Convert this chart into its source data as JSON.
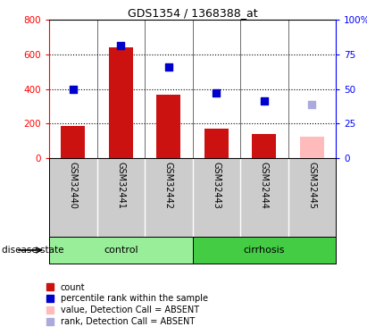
{
  "title": "GDS1354 / 1368388_at",
  "samples": [
    "GSM32440",
    "GSM32441",
    "GSM32442",
    "GSM32443",
    "GSM32444",
    "GSM32445"
  ],
  "bar_values": [
    185,
    640,
    365,
    168,
    138,
    125
  ],
  "bar_colors": [
    "#cc1111",
    "#cc1111",
    "#cc1111",
    "#cc1111",
    "#cc1111",
    "#ffbbbb"
  ],
  "dot_values": [
    50,
    81,
    66,
    47,
    41,
    39
  ],
  "dot_colors": [
    "#0000cc",
    "#0000cc",
    "#0000cc",
    "#0000cc",
    "#0000cc",
    "#aaaadd"
  ],
  "ylim_left": [
    0,
    800
  ],
  "ylim_right": [
    0,
    100
  ],
  "yticks_left": [
    0,
    200,
    400,
    600,
    800
  ],
  "yticks_right": [
    0,
    25,
    50,
    75,
    100
  ],
  "ytick_labels_left": [
    "0",
    "200",
    "400",
    "600",
    "800"
  ],
  "ytick_labels_right": [
    "0",
    "25",
    "50",
    "75",
    "100%"
  ],
  "group_info": [
    {
      "label": "control",
      "start": 0,
      "end": 3,
      "color": "#99ee99"
    },
    {
      "label": "cirrhosis",
      "start": 3,
      "end": 6,
      "color": "#44cc44"
    }
  ],
  "disease_state_label": "disease state",
  "legend_items": [
    {
      "label": "count",
      "color": "#cc1111"
    },
    {
      "label": "percentile rank within the sample",
      "color": "#0000cc"
    },
    {
      "label": "value, Detection Call = ABSENT",
      "color": "#ffbbbb"
    },
    {
      "label": "rank, Detection Call = ABSENT",
      "color": "#aaaadd"
    }
  ],
  "bar_width": 0.5,
  "dot_size": 40,
  "label_area_bg": "#cccccc",
  "plot_bg": "#ffffff"
}
